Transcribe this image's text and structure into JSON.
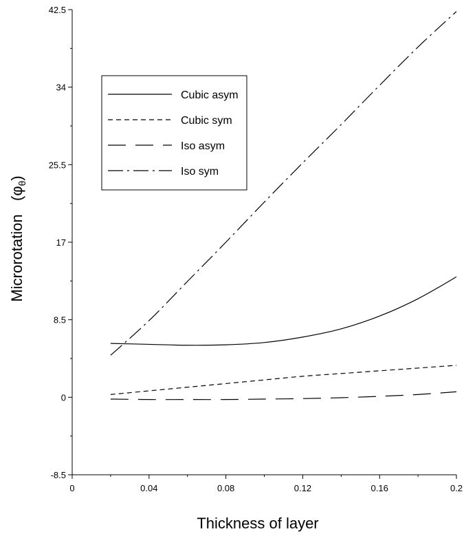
{
  "chart_data": {
    "type": "line",
    "xlabel": "Thickness of layer",
    "ylabel": "Microrotation",
    "ylabel_symbol": "φ",
    "ylabel_subscript": "θ",
    "xlim": [
      0,
      0.2
    ],
    "ylim": [
      -8.5,
      42.5
    ],
    "x_ticks": [
      0,
      0.04,
      0.08,
      0.12,
      0.16,
      0.2
    ],
    "x_tick_labels": [
      "0",
      "0.04",
      "0.08",
      "0.12",
      "0.16",
      "0.2"
    ],
    "y_ticks": [
      -8.5,
      0,
      8.5,
      17,
      25.5,
      34,
      42.5
    ],
    "y_tick_labels": [
      "-8.5",
      "0",
      "8.5",
      "17",
      "25.5",
      "34",
      "42.5"
    ],
    "grid": false,
    "legend_position": "upper-left",
    "x": [
      0.02,
      0.04,
      0.06,
      0.08,
      0.1,
      0.12,
      0.14,
      0.16,
      0.18,
      0.2
    ],
    "series": [
      {
        "name": "Cubic asym",
        "dash": "solid",
        "values": [
          5.9,
          5.8,
          5.7,
          5.75,
          6.0,
          6.6,
          7.5,
          8.9,
          10.8,
          13.2
        ]
      },
      {
        "name": "Cubic sym",
        "dash": "short-dash",
        "values": [
          0.3,
          0.7,
          1.1,
          1.5,
          1.9,
          2.3,
          2.6,
          2.9,
          3.2,
          3.5
        ]
      },
      {
        "name": "Iso asym",
        "dash": "long-dash",
        "values": [
          -0.2,
          -0.25,
          -0.25,
          -0.25,
          -0.2,
          -0.15,
          -0.05,
          0.1,
          0.3,
          0.6
        ]
      },
      {
        "name": "Iso sym",
        "dash": "dash-dot",
        "values": [
          4.6,
          8.4,
          12.7,
          17.0,
          21.4,
          25.7,
          29.9,
          34.2,
          38.4,
          42.3
        ]
      }
    ]
  }
}
